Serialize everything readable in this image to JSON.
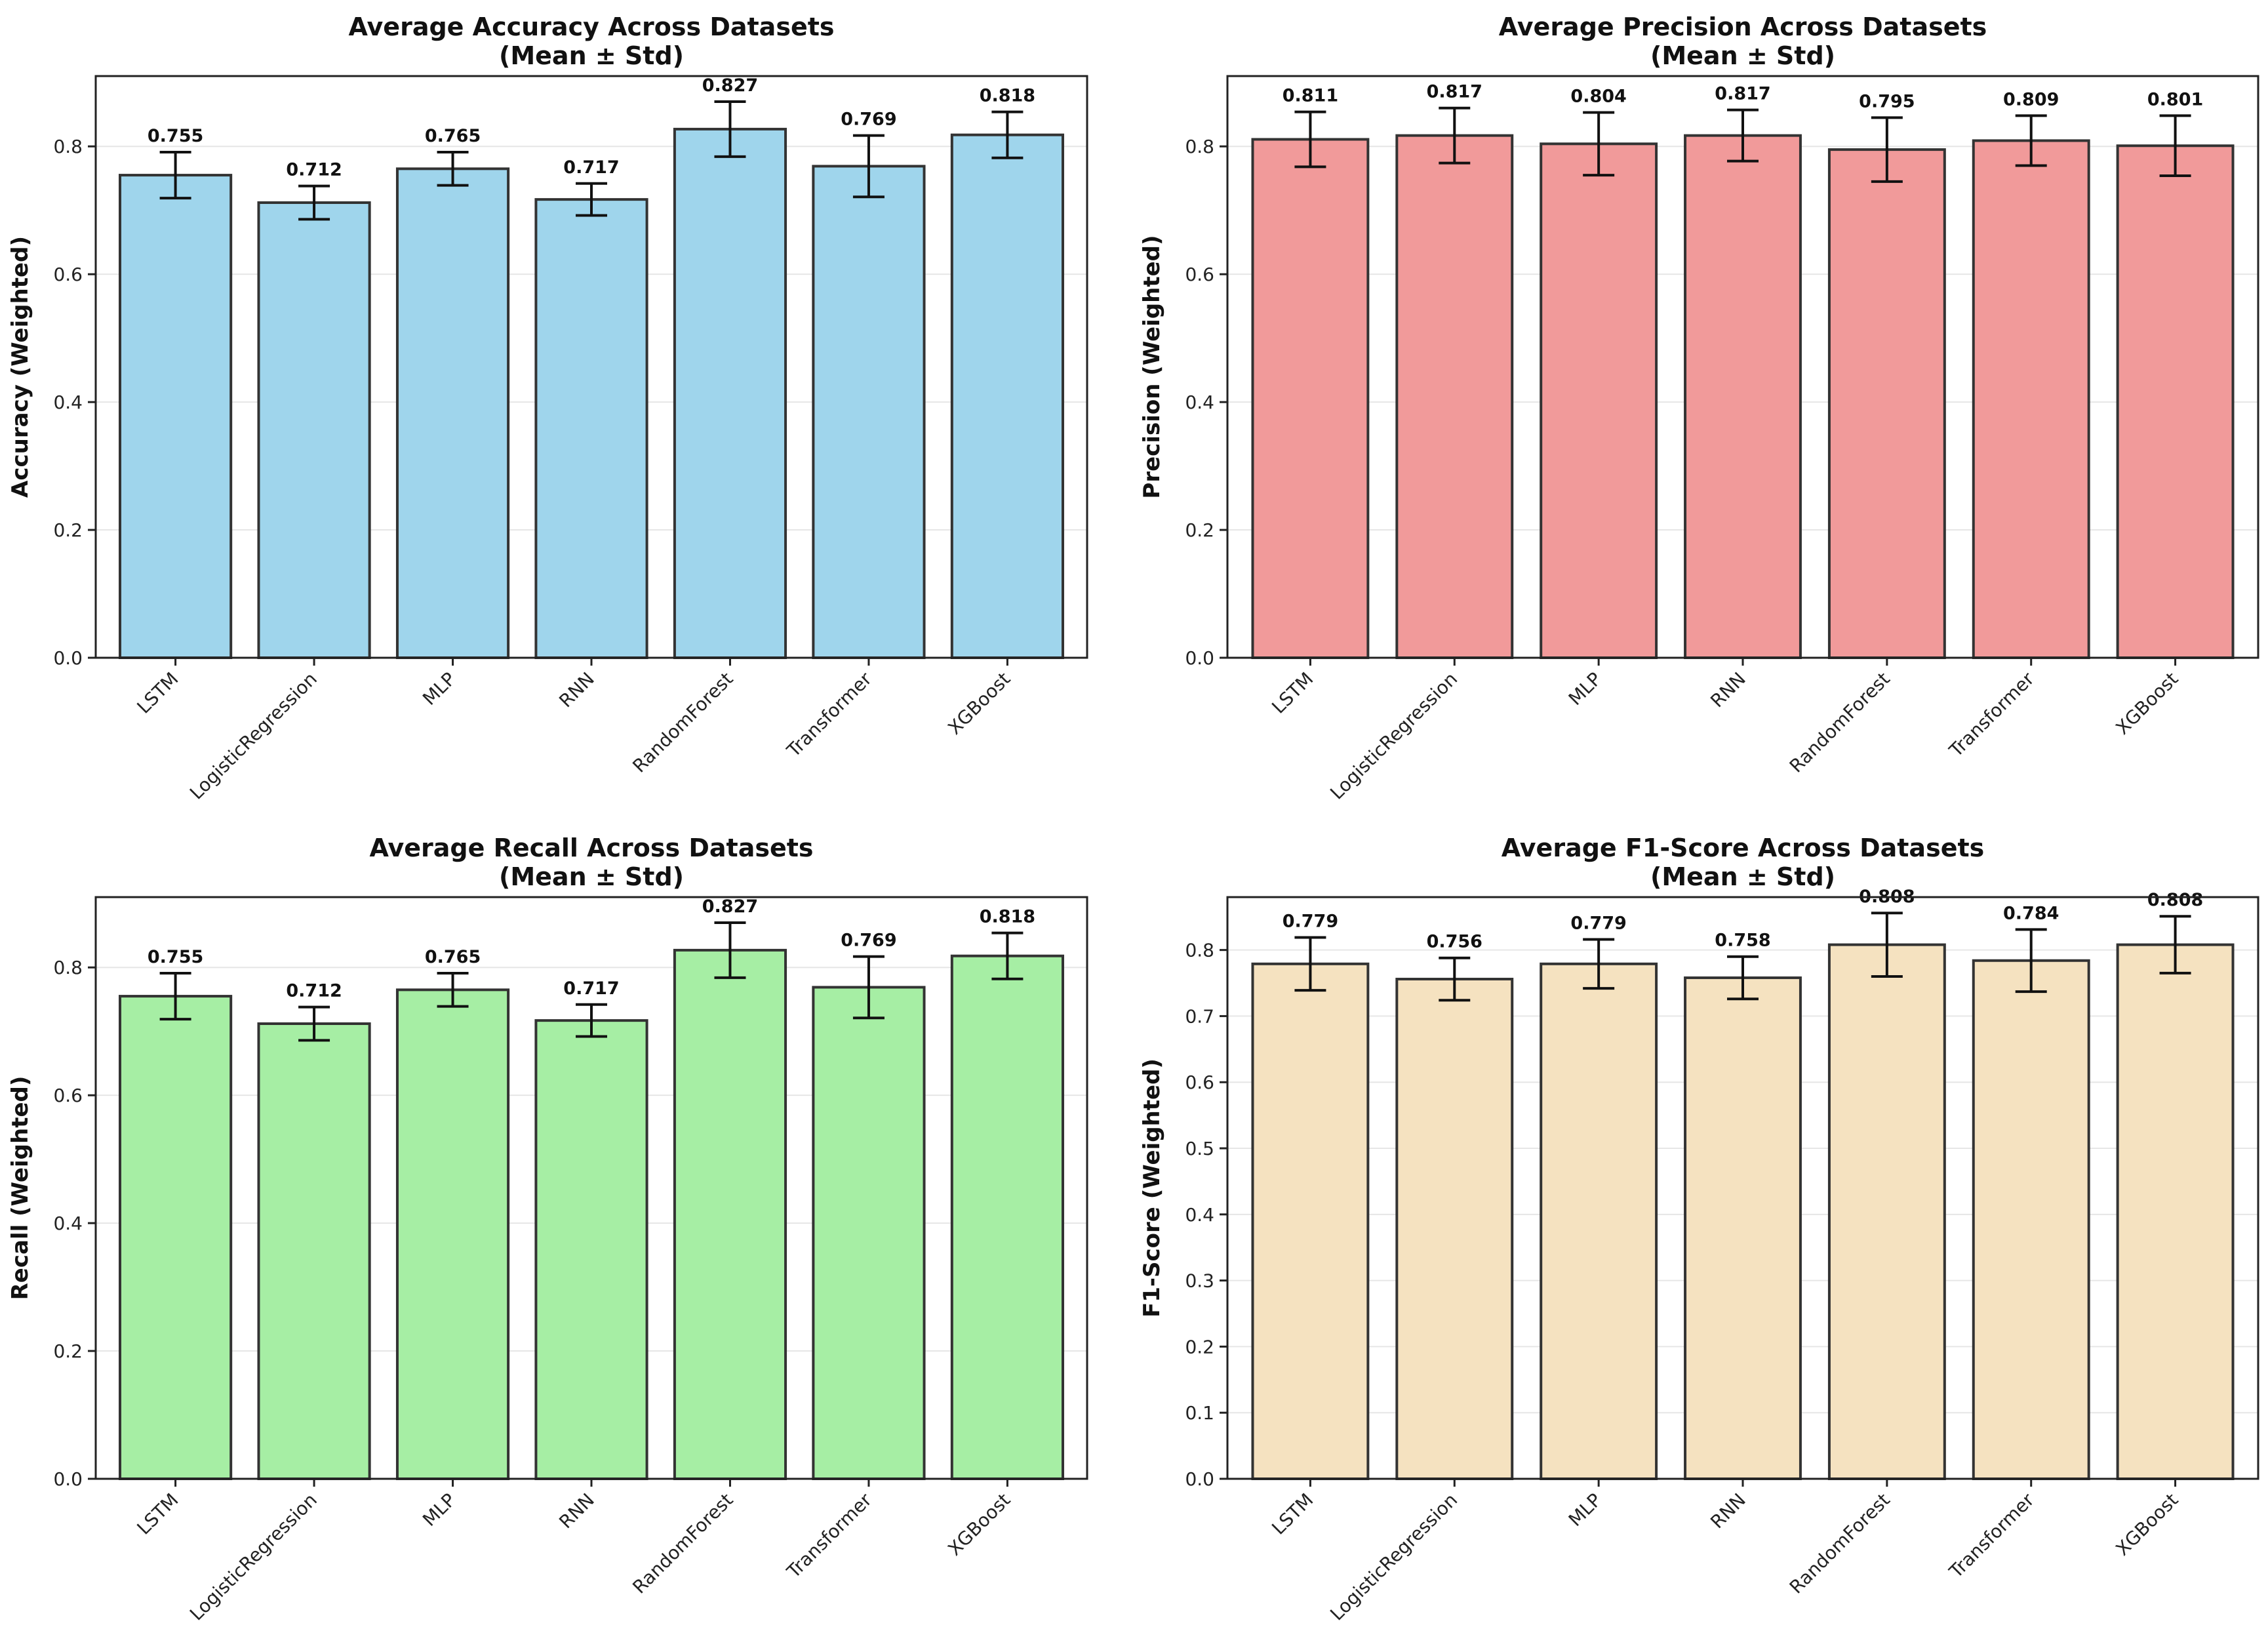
{
  "chart_data": [
    {
      "type": "bar",
      "title": "Average Accuracy Across Datasets",
      "subtitle": "(Mean ± Std)",
      "ylabel": "Accuracy (Weighted)",
      "xlabel": "",
      "categories": [
        "LSTM",
        "LogisticRegression",
        "MLP",
        "RNN",
        "RandomForest",
        "Transformer",
        "XGBoost"
      ],
      "values": [
        0.755,
        0.712,
        0.765,
        0.717,
        0.827,
        0.769,
        0.818
      ],
      "value_labels": [
        "0.755",
        "0.712",
        "0.765",
        "0.717",
        "0.827",
        "0.769",
        "0.818"
      ],
      "errors": [
        0.036,
        0.026,
        0.026,
        0.025,
        0.043,
        0.048,
        0.036
      ],
      "ylim": [
        0,
        0.91
      ],
      "yticks": [
        0.0,
        0.2,
        0.4,
        0.6,
        0.8
      ],
      "ytick_labels": [
        "0.0",
        "0.2",
        "0.4",
        "0.6",
        "0.8"
      ],
      "color": "#9fd5ec",
      "grid": "y"
    },
    {
      "type": "bar",
      "title": "Average Precision Across Datasets",
      "subtitle": "(Mean ± Std)",
      "ylabel": "Precision (Weighted)",
      "xlabel": "",
      "categories": [
        "LSTM",
        "LogisticRegression",
        "MLP",
        "RNN",
        "RandomForest",
        "Transformer",
        "XGBoost"
      ],
      "values": [
        0.811,
        0.817,
        0.804,
        0.817,
        0.795,
        0.809,
        0.801
      ],
      "value_labels": [
        "0.811",
        "0.817",
        "0.804",
        "0.817",
        "0.795",
        "0.809",
        "0.801"
      ],
      "errors": [
        0.043,
        0.043,
        0.049,
        0.04,
        0.05,
        0.039,
        0.047
      ],
      "ylim": [
        0,
        0.91
      ],
      "yticks": [
        0.0,
        0.2,
        0.4,
        0.6,
        0.8
      ],
      "ytick_labels": [
        "0.0",
        "0.2",
        "0.4",
        "0.6",
        "0.8"
      ],
      "color": "#f19a9a",
      "grid": "y"
    },
    {
      "type": "bar",
      "title": "Average Recall Across Datasets",
      "subtitle": "(Mean ± Std)",
      "ylabel": "Recall (Weighted)",
      "xlabel": "",
      "categories": [
        "LSTM",
        "LogisticRegression",
        "MLP",
        "RNN",
        "RandomForest",
        "Transformer",
        "XGBoost"
      ],
      "values": [
        0.755,
        0.712,
        0.765,
        0.717,
        0.827,
        0.769,
        0.818
      ],
      "value_labels": [
        "0.755",
        "0.712",
        "0.765",
        "0.717",
        "0.827",
        "0.769",
        "0.818"
      ],
      "errors": [
        0.036,
        0.026,
        0.026,
        0.025,
        0.043,
        0.048,
        0.036
      ],
      "ylim": [
        0,
        0.91
      ],
      "yticks": [
        0.0,
        0.2,
        0.4,
        0.6,
        0.8
      ],
      "ytick_labels": [
        "0.0",
        "0.2",
        "0.4",
        "0.6",
        "0.8"
      ],
      "color": "#a6eea4",
      "grid": "y"
    },
    {
      "type": "bar",
      "title": "Average F1-Score Across Datasets",
      "subtitle": "(Mean ± Std)",
      "ylabel": "F1-Score (Weighted)",
      "xlabel": "",
      "categories": [
        "LSTM",
        "LogisticRegression",
        "MLP",
        "RNN",
        "RandomForest",
        "Transformer",
        "XGBoost"
      ],
      "values": [
        0.779,
        0.756,
        0.779,
        0.758,
        0.808,
        0.784,
        0.808
      ],
      "value_labels": [
        "0.779",
        "0.756",
        "0.779",
        "0.758",
        "0.808",
        "0.784",
        "0.808"
      ],
      "errors": [
        0.04,
        0.032,
        0.037,
        0.032,
        0.048,
        0.047,
        0.043
      ],
      "ylim": [
        0,
        0.88
      ],
      "yticks": [
        0.0,
        0.1,
        0.2,
        0.3,
        0.4,
        0.5,
        0.6,
        0.7,
        0.8
      ],
      "ytick_labels": [
        "0.0",
        "0.1",
        "0.2",
        "0.3",
        "0.4",
        "0.5",
        "0.6",
        "0.7",
        "0.8"
      ],
      "color": "#f5e2c0",
      "grid": "y"
    }
  ]
}
